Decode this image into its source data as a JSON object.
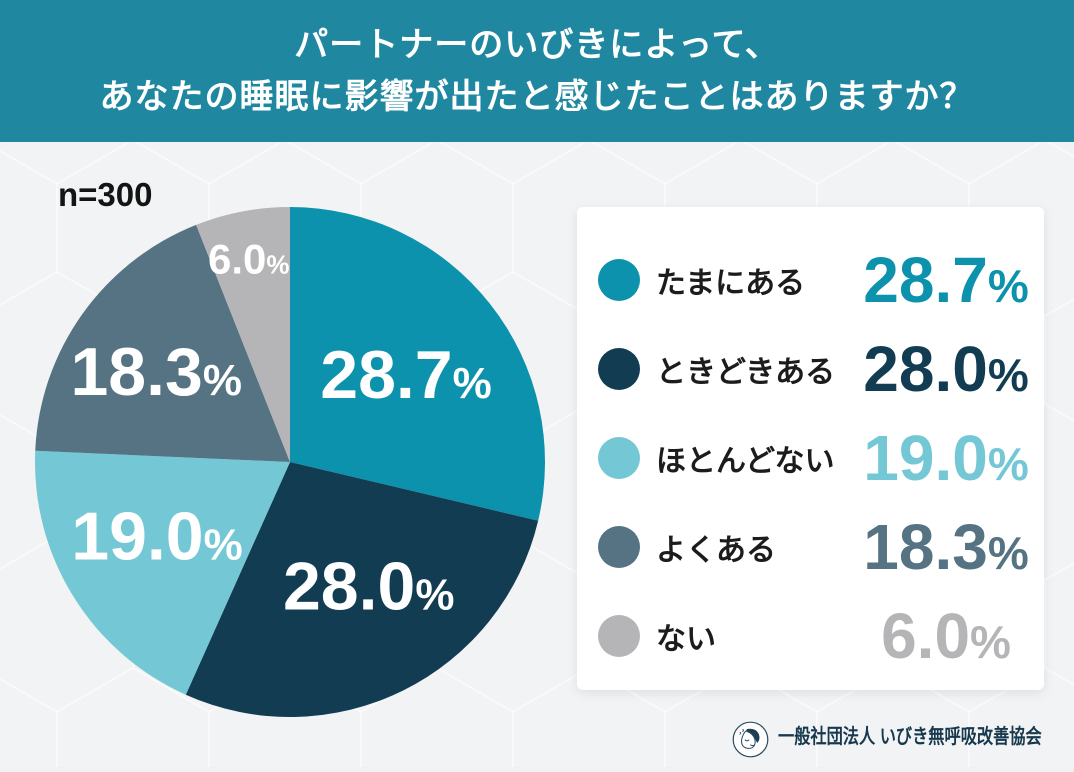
{
  "header": {
    "line1": "パートナーのいびきによって、",
    "line2": "あなたの睡眠に影響が出たと感じたことはありますか？",
    "background_color": "#1f87a0"
  },
  "sample_label": "n=300",
  "chart_data": {
    "type": "pie",
    "title": "パートナーのいびきによって、あなたの睡眠に影響が出たと感じたことはありますか？",
    "sample_size": 300,
    "categories": [
      "たまにある",
      "ときどきある",
      "ほとんどない",
      "よくある",
      "ない"
    ],
    "values": [
      28.7,
      28.0,
      19.0,
      18.3,
      6.0
    ],
    "unit": "%",
    "colors": [
      "#0c92ac",
      "#123c52",
      "#74c7d5",
      "#557382",
      "#b5b5b7"
    ],
    "start_angle": "top",
    "direction": "clockwise",
    "legend_position": "right"
  },
  "footer": {
    "organization": "一般社団法人 いびき無呼吸改善協会"
  }
}
